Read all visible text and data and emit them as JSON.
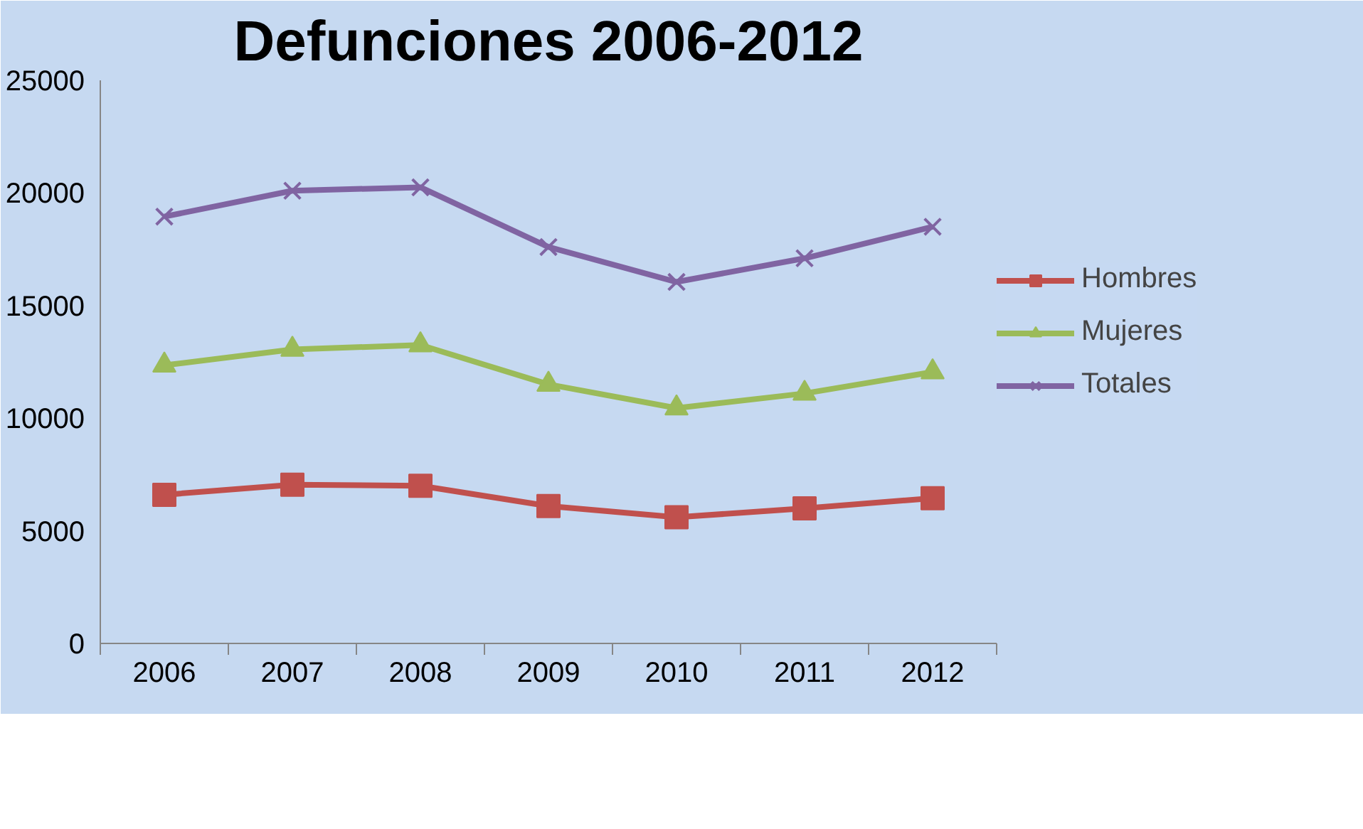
{
  "chart_data": {
    "type": "line",
    "title": "Defunciones 2006-2012",
    "categories": [
      "2006",
      "2007",
      "2008",
      "2009",
      "2010",
      "2011",
      "2012"
    ],
    "series": [
      {
        "name": "Hombres",
        "color": "#c0504d",
        "marker": "square",
        "values": [
          6600,
          7050,
          7000,
          6100,
          5600,
          6000,
          6450
        ]
      },
      {
        "name": "Mujeres",
        "color": "#9bbb59",
        "marker": "triangle",
        "values": [
          12350,
          13050,
          13250,
          11500,
          10450,
          11100,
          12050
        ]
      },
      {
        "name": "Totales",
        "color": "#8064a2",
        "marker": "cross",
        "values": [
          18950,
          20100,
          20250,
          17600,
          16050,
          17100,
          18500
        ]
      }
    ],
    "ylim": [
      0,
      25000
    ],
    "yticks": [
      0,
      5000,
      10000,
      15000,
      20000,
      25000
    ],
    "grid": false,
    "legend": "right",
    "line_style": "solid"
  }
}
